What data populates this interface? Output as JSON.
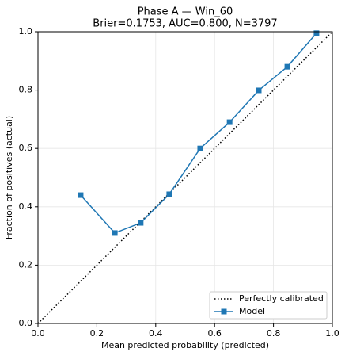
{
  "chart_data": {
    "type": "line",
    "title": "Phase A — Win_60",
    "subtitle": "Brier=0.1753, AUC=0.800, N=3797",
    "xlabel": "Mean predicted probability (predicted)",
    "ylabel": "Fraction of positives (actual)",
    "xlim": [
      0,
      1
    ],
    "ylim": [
      0,
      1
    ],
    "xticks": [
      {
        "value": 0,
        "label": "0.0"
      },
      0.2,
      0.4,
      0.6,
      0.8,
      {
        "value": 1,
        "label": "1.0"
      }
    ],
    "yticks": [
      {
        "value": 0,
        "label": "0.0"
      },
      0.2,
      0.4,
      0.6,
      0.8,
      {
        "value": 1,
        "label": "1.0"
      }
    ],
    "grid": true,
    "legend": "lower right",
    "series": [
      {
        "name": "Perfectly calibrated",
        "color": "#000000",
        "style": "dotted",
        "x": [
          0,
          1
        ],
        "values": [
          0,
          1
        ]
      },
      {
        "name": "Model",
        "color": "#1f77b4",
        "style": "solid",
        "marker": "square",
        "x": [
          0.145,
          0.261,
          0.349,
          0.446,
          0.551,
          0.651,
          0.75,
          0.847,
          0.946
        ],
        "values": [
          0.44,
          0.31,
          0.345,
          0.443,
          0.6,
          0.69,
          0.799,
          0.88,
          0.995
        ]
      }
    ]
  }
}
